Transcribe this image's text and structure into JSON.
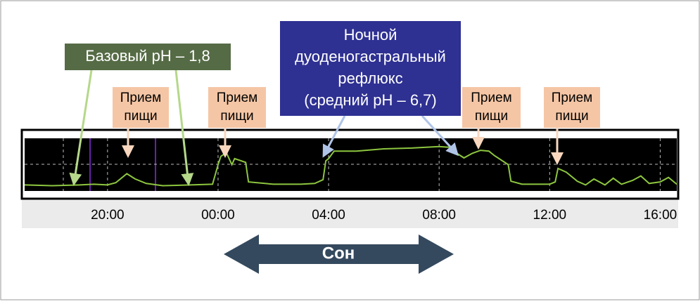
{
  "chart_data": {
    "type": "line",
    "x": [
      17.0,
      18.0,
      19.0,
      19.5,
      20.0,
      20.3,
      20.7,
      21.0,
      21.4,
      22.0,
      23.0,
      23.8,
      24.0,
      24.1,
      24.3,
      24.5,
      24.6,
      25.0,
      25.1,
      26.0,
      27.0,
      27.5,
      27.8,
      27.9,
      28.0,
      28.2,
      29.0,
      30.0,
      31.0,
      32.0,
      32.4,
      32.6,
      32.9,
      33.2,
      33.5,
      33.8,
      34.0,
      34.5,
      34.6,
      35.0,
      36.0,
      36.2,
      36.3,
      36.6,
      37.0,
      37.3,
      37.6,
      38.0,
      38.3,
      38.6,
      39.0,
      39.3,
      39.6,
      40.0,
      40.3,
      40.6
    ],
    "values": [
      1.8,
      1.7,
      1.8,
      1.9,
      1.8,
      2.1,
      3.3,
      2.6,
      2.0,
      1.7,
      1.8,
      1.9,
      4.5,
      5.6,
      6.1,
      4.5,
      5.3,
      4.8,
      2.2,
      1.9,
      1.9,
      2.0,
      2.5,
      5.0,
      5.3,
      6.3,
      6.3,
      6.6,
      6.7,
      6.9,
      6.8,
      6.1,
      5.4,
      6.0,
      6.4,
      6.3,
      5.7,
      4.5,
      2.3,
      1.9,
      1.9,
      2.2,
      4.0,
      3.5,
      2.3,
      1.8,
      2.6,
      1.8,
      2.7,
      1.9,
      2.4,
      3.0,
      2.0,
      2.2,
      2.8,
      1.9
    ],
    "color": "#8dc63f",
    "xlim": [
      17.0,
      40.6
    ],
    "xticks": [
      {
        "value": 20,
        "label": "20:00"
      },
      {
        "value": 24,
        "label": "00:00"
      },
      {
        "value": 28,
        "label": "04:00"
      },
      {
        "value": 32,
        "label": "08:00"
      },
      {
        "value": 36,
        "label": "12:00"
      },
      {
        "value": 40,
        "label": "16:00"
      }
    ],
    "ylim": [
      1,
      8
    ],
    "grid": true,
    "annotations": [
      {
        "lines": [
          "Базовый pH – 1,8"
        ]
      },
      {
        "lines": [
          "Прием",
          "пищи"
        ]
      },
      {
        "lines": [
          "Прием",
          "пищи"
        ]
      },
      {
        "lines": [
          "Ночной",
          "дуоденогастральный",
          "рефлюкс",
          "(средний pH – 6,7)"
        ]
      },
      {
        "lines": [
          "Прием",
          "пищи"
        ]
      },
      {
        "lines": [
          "Прием",
          "пищи"
        ]
      },
      {
        "lines": [
          "Сон"
        ]
      }
    ]
  }
}
